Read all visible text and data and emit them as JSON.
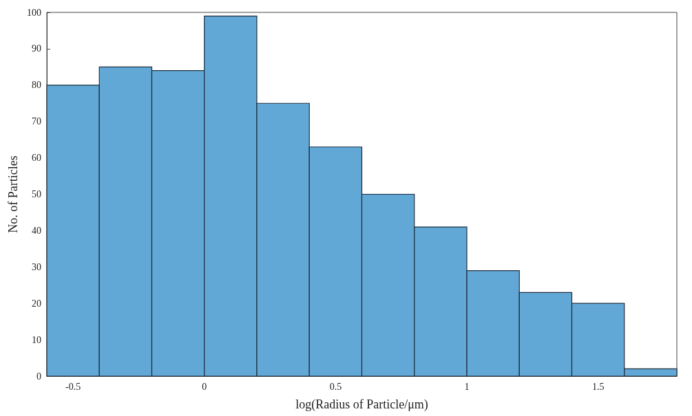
{
  "chart_data": {
    "type": "histogram",
    "xlabel": "log(Radius of Particle/μm)",
    "ylabel": "No. of Particles",
    "bins": [
      -0.6,
      -0.4,
      -0.2,
      0,
      0.2,
      0.4,
      0.6,
      0.8,
      1,
      1.2,
      1.4,
      1.6,
      1.8
    ],
    "values": [
      80,
      85,
      84,
      99,
      75,
      63,
      50,
      41,
      29,
      23,
      20,
      2
    ],
    "color": "#62a8d7",
    "xlim": [
      -0.6,
      1.8
    ],
    "xticks": [
      -0.5,
      0,
      0.5,
      1,
      1.5
    ],
    "ylim": [
      0,
      100
    ],
    "yticks": [
      0,
      10,
      20,
      30,
      40,
      50,
      60,
      70,
      80,
      90,
      100
    ],
    "grid": false
  }
}
